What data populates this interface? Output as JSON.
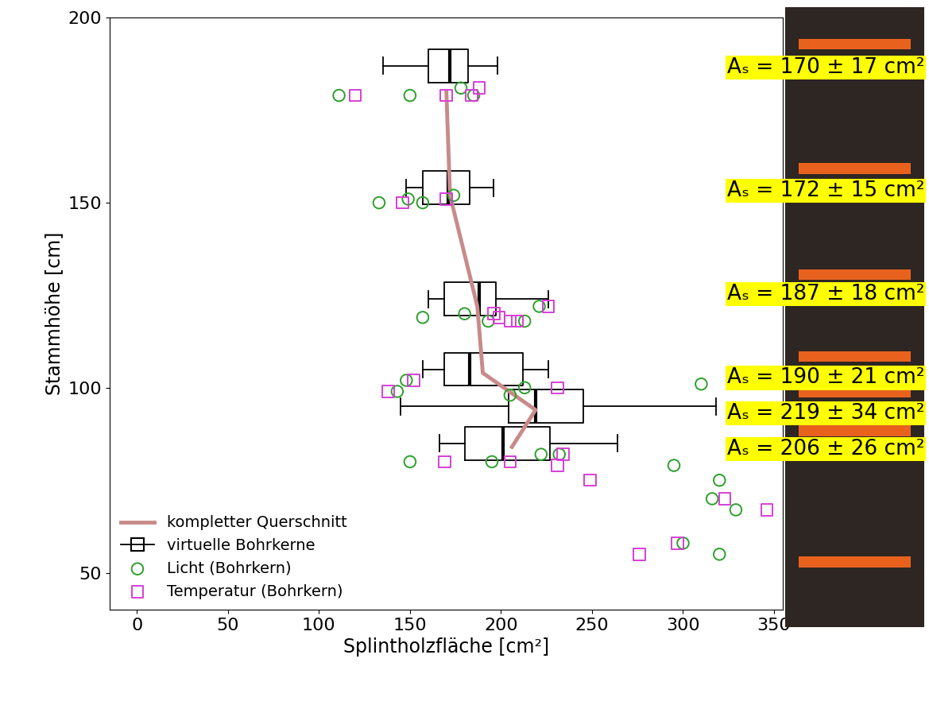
{
  "chart_data": {
    "type": "boxplot",
    "xlabel": "Splintholzfläche [cm²]",
    "ylabel": "Stammhöhe [cm]",
    "xlim": [
      -15,
      355
    ],
    "xticks": [
      0,
      50,
      100,
      150,
      200,
      250,
      300,
      350
    ],
    "ylim": [
      40,
      200
    ],
    "yticks": [
      50,
      100,
      150,
      200
    ],
    "legend": "lower left",
    "series": [
      {
        "name": "kompletter Querschnitt",
        "type": "line",
        "color": "#c98a8a",
        "x": [
          170,
          172,
          187,
          190,
          219,
          206
        ],
        "y": [
          180,
          152,
          122,
          104,
          94,
          84
        ],
        "value_labels": [
          "Aₛ = 170 ± 17 cm²",
          "Aₛ = 172 ± 15 cm²",
          "Aₛ = 187 ± 18 cm²",
          "Aₛ = 190 ± 21 cm²",
          "Aₛ = 219 ± 34 cm²",
          "Aₛ = 206 ± 26 cm²"
        ]
      },
      {
        "name": "virtuelle Bohrkerne",
        "type": "box",
        "color": "#000000",
        "y": [
          187,
          154,
          124,
          105,
          95,
          85
        ],
        "whislo": [
          135,
          148,
          160,
          157,
          145,
          166
        ],
        "q1": [
          160,
          157,
          169,
          169,
          204,
          180
        ],
        "med": [
          172,
          171,
          188,
          183,
          219,
          201
        ],
        "q3": [
          182,
          183,
          197,
          212,
          245,
          227
        ],
        "whishi": [
          198,
          196,
          226,
          226,
          318,
          264
        ]
      },
      {
        "name": "Licht (Bohrkern)",
        "type": "scatter",
        "marker": "circle",
        "color": "#2ca02c",
        "x": [
          111,
          150,
          178,
          185,
          133,
          149,
          157,
          174,
          157,
          180,
          193,
          213,
          221,
          148,
          143,
          205,
          213,
          310,
          150,
          195,
          222,
          232,
          295,
          320,
          316,
          329,
          300,
          320
        ],
        "y": [
          179,
          179,
          181,
          179,
          150,
          151,
          150,
          152,
          119,
          120,
          118,
          118,
          122,
          102,
          99,
          98,
          100,
          101,
          80,
          80,
          82,
          82,
          79,
          75,
          70,
          67,
          58,
          55
        ]
      },
      {
        "name": "Temperatur (Bohrkern)",
        "type": "scatter",
        "marker": "square",
        "color": "#d63fd6",
        "x": [
          120,
          170,
          188,
          184,
          146,
          170,
          196,
          199,
          205,
          209,
          226,
          138,
          152,
          231,
          169,
          205,
          231,
          234,
          249,
          323,
          346,
          297,
          276
        ],
        "y": [
          179,
          179,
          181,
          179,
          150,
          151,
          120,
          119,
          118,
          118,
          122,
          99,
          102,
          100,
          80,
          80,
          79,
          82,
          75,
          70,
          67,
          58,
          55
        ]
      }
    ]
  }
}
